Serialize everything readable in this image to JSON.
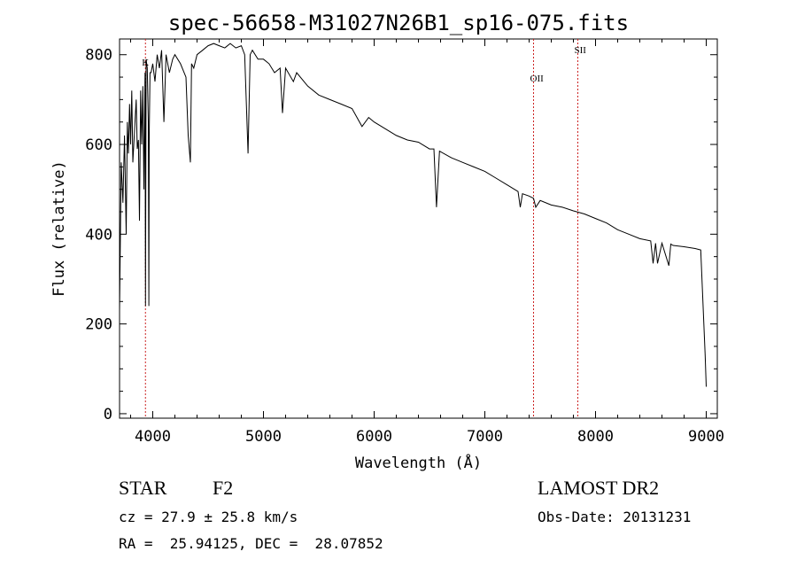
{
  "chart_data": {
    "type": "line",
    "title": "spec-56658-M31027N26B1_sp16-075.fits",
    "xlabel": "Wavelength (Å)",
    "ylabel": "Flux (relative)",
    "xlim": [
      3700,
      9100
    ],
    "ylim": [
      -10,
      835
    ],
    "xticks": [
      4000,
      5000,
      6000,
      7000,
      8000,
      9000
    ],
    "yticks": [
      0,
      200,
      400,
      600,
      800
    ],
    "grid": false,
    "series": [
      {
        "x": [
          3700,
          3715,
          3730,
          3745,
          3760,
          3770,
          3780,
          3790,
          3800,
          3810,
          3820,
          3835,
          3850,
          3860,
          3870,
          3880,
          3890,
          3900,
          3910,
          3920,
          3930,
          3934,
          3940,
          3950,
          3960,
          3965,
          3968,
          3975,
          3985,
          4000,
          4020,
          4040,
          4060,
          4080,
          4101,
          4120,
          4150,
          4180,
          4200,
          4250,
          4300,
          4320,
          4340,
          4350,
          4370,
          4400,
          4450,
          4500,
          4550,
          4600,
          4650,
          4700,
          4750,
          4800,
          4830,
          4861,
          4880,
          4900,
          4950,
          5000,
          5050,
          5100,
          5150,
          5172,
          5200,
          5270,
          5300,
          5400,
          5500,
          5600,
          5700,
          5800,
          5890,
          5950,
          6000,
          6100,
          6200,
          6300,
          6400,
          6500,
          6540,
          6563,
          6590,
          6700,
          6800,
          6900,
          7000,
          7100,
          7200,
          7300,
          7320,
          7340,
          7400,
          7440,
          7460,
          7500,
          7600,
          7700,
          7800,
          7900,
          8000,
          8100,
          8200,
          8300,
          8400,
          8498,
          8520,
          8542,
          8560,
          8600,
          8662,
          8680,
          8700,
          8800,
          8900,
          8950,
          8990,
          9000
        ],
        "y": [
          230,
          560,
          470,
          620,
          400,
          650,
          580,
          690,
          600,
          720,
          560,
          630,
          700,
          590,
          610,
          430,
          720,
          600,
          730,
          500,
          760,
          240,
          790,
          770,
          650,
          240,
          620,
          760,
          760,
          780,
          740,
          800,
          770,
          810,
          650,
          800,
          760,
          790,
          800,
          780,
          750,
          620,
          560,
          780,
          770,
          800,
          810,
          820,
          825,
          820,
          815,
          825,
          815,
          820,
          800,
          580,
          800,
          810,
          790,
          790,
          780,
          760,
          770,
          670,
          770,
          740,
          760,
          730,
          710,
          700,
          690,
          680,
          640,
          660,
          650,
          635,
          620,
          610,
          605,
          590,
          590,
          460,
          585,
          570,
          560,
          550,
          540,
          525,
          510,
          495,
          460,
          490,
          485,
          480,
          460,
          475,
          465,
          460,
          452,
          445,
          435,
          425,
          410,
          400,
          390,
          385,
          335,
          380,
          335,
          380,
          330,
          378,
          375,
          372,
          368,
          365,
          130,
          60
        ]
      }
    ],
    "lines": [
      {
        "label": "K",
        "x": 3934
      },
      {
        "label": "OII",
        "x": 7440
      },
      {
        "label": "SII",
        "x": 7840
      }
    ],
    "colors": {
      "spectrum": "#000000",
      "marker": "#cc2222",
      "axes": "#000000"
    }
  },
  "footer": {
    "class_label": "STAR",
    "subclass": "F2",
    "survey": "LAMOST DR2",
    "velocity": "cz = 27.9 ± 25.8 km/s",
    "obs_date": "Obs-Date: 20131231",
    "coords": "RA =  25.94125, DEC =  28.07852"
  }
}
